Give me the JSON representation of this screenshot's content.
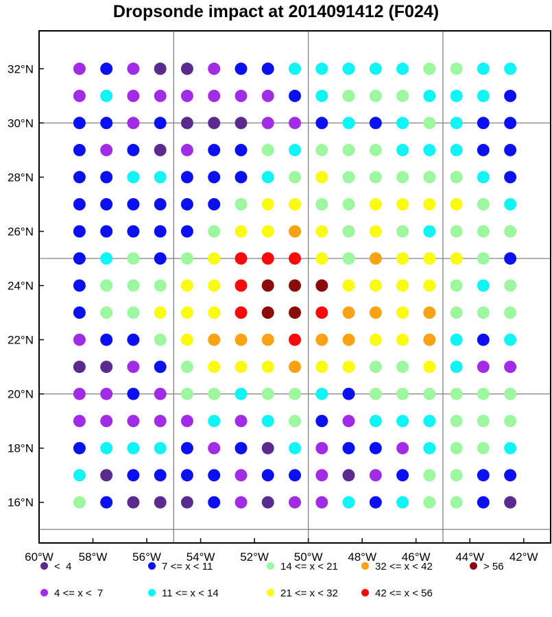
{
  "title": "Dropsonde impact at 2014091412 (F024)",
  "map": {
    "lon_range": [
      -60,
      -41
    ],
    "lat_range": [
      14.5,
      33.4
    ],
    "x_ticks": [
      {
        "lon": -60,
        "label": "60°W"
      },
      {
        "lon": -58,
        "label": "58°W"
      },
      {
        "lon": -56,
        "label": "56°W"
      },
      {
        "lon": -54,
        "label": "54°W"
      },
      {
        "lon": -52,
        "label": "52°W"
      },
      {
        "lon": -50,
        "label": "50°W"
      },
      {
        "lon": -48,
        "label": "48°W"
      },
      {
        "lon": -46,
        "label": "46°W"
      },
      {
        "lon": -44,
        "label": "44°W"
      },
      {
        "lon": -42,
        "label": "42°W"
      }
    ],
    "y_ticks": [
      {
        "lat": 16,
        "label": "16°N"
      },
      {
        "lat": 18,
        "label": "18°N"
      },
      {
        "lat": 20,
        "label": "20°N"
      },
      {
        "lat": 22,
        "label": "22°N"
      },
      {
        "lat": 24,
        "label": "24°N"
      },
      {
        "lat": 26,
        "label": "26°N"
      },
      {
        "lat": 28,
        "label": "28°N"
      },
      {
        "lat": 30,
        "label": "30°N"
      },
      {
        "lat": 32,
        "label": "32°N"
      }
    ],
    "grid_lons": [
      -55,
      -50,
      -45
    ],
    "grid_lats": [
      15,
      20,
      25,
      30
    ],
    "point_lons": [
      -58.5,
      -57.5,
      -56.5,
      -55.5,
      -54.5,
      -53.5,
      -52.5,
      -51.5,
      -50.5,
      -49.5,
      -48.5,
      -47.5,
      -46.5,
      -45.5,
      -44.5,
      -43.5,
      -42.5
    ],
    "point_lats": [
      32,
      31,
      30,
      29,
      28,
      27,
      26,
      25,
      24,
      23,
      22,
      21,
      20,
      19,
      18,
      17,
      16
    ]
  },
  "legend": [
    {
      "label": "<  4",
      "color": "#5b2a8e"
    },
    {
      "label": "7 <= x < 11",
      "color": "#0a10f0"
    },
    {
      "label": "14 <= x < 21",
      "color": "#9cf79e"
    },
    {
      "label": "32 <= x < 42",
      "color": "#f8a214"
    },
    {
      "label": "> 56",
      "color": "#8b0a0a"
    },
    {
      "label": "4 <= x <  7",
      "color": "#a22ce6"
    },
    {
      "label": "11 <= x < 14",
      "color": "#0ff5f5"
    },
    {
      "label": "21 <= x < 32",
      "color": "#fafa12"
    },
    {
      "label": "42 <= x < 56",
      "color": "#fa0a0a"
    }
  ],
  "category_codes": {
    "0": "<  4",
    "1": "4 <= x <  7",
    "2": "7 <= x < 11",
    "3": "11 <= x < 14",
    "4": "14 <= x < 21",
    "5": "21 <= x < 32",
    "6": "32 <= x < 42",
    "7": "42 <= x < 56",
    "8": "> 56"
  },
  "grid_categories": [
    [
      1,
      2,
      1,
      0,
      0,
      1,
      2,
      2,
      3,
      3,
      3,
      3,
      3,
      4,
      4,
      3,
      3
    ],
    [
      1,
      3,
      1,
      1,
      1,
      1,
      1,
      1,
      2,
      3,
      4,
      4,
      4,
      3,
      3,
      3,
      2
    ],
    [
      2,
      2,
      1,
      2,
      0,
      0,
      0,
      1,
      1,
      2,
      3,
      2,
      3,
      4,
      3,
      2,
      2
    ],
    [
      2,
      1,
      2,
      0,
      1,
      2,
      2,
      4,
      3,
      4,
      4,
      4,
      3,
      3,
      3,
      2,
      2
    ],
    [
      2,
      2,
      3,
      3,
      2,
      2,
      2,
      3,
      4,
      5,
      4,
      4,
      4,
      4,
      4,
      3,
      2
    ],
    [
      2,
      2,
      2,
      2,
      2,
      2,
      4,
      5,
      5,
      4,
      4,
      5,
      5,
      5,
      5,
      4,
      3
    ],
    [
      2,
      2,
      2,
      2,
      2,
      4,
      5,
      5,
      6,
      5,
      4,
      5,
      4,
      3,
      4,
      4,
      4
    ],
    [
      2,
      3,
      4,
      2,
      4,
      5,
      7,
      7,
      7,
      5,
      4,
      6,
      5,
      5,
      5,
      4,
      2
    ],
    [
      2,
      4,
      4,
      4,
      5,
      5,
      7,
      8,
      8,
      8,
      5,
      5,
      5,
      5,
      4,
      3,
      4
    ],
    [
      2,
      4,
      4,
      5,
      5,
      5,
      7,
      8,
      8,
      7,
      6,
      6,
      5,
      6,
      4,
      4,
      4
    ],
    [
      1,
      2,
      2,
      4,
      5,
      6,
      6,
      6,
      7,
      6,
      6,
      5,
      5,
      6,
      3,
      2,
      3
    ],
    [
      0,
      0,
      1,
      2,
      4,
      5,
      5,
      5,
      6,
      5,
      5,
      4,
      4,
      5,
      3,
      1,
      1
    ],
    [
      1,
      1,
      2,
      1,
      4,
      4,
      3,
      4,
      4,
      3,
      2,
      4,
      4,
      4,
      4,
      4,
      4
    ],
    [
      1,
      1,
      1,
      1,
      1,
      3,
      1,
      3,
      4,
      2,
      1,
      3,
      3,
      3,
      4,
      4,
      4
    ],
    [
      2,
      3,
      3,
      3,
      2,
      1,
      2,
      0,
      3,
      1,
      2,
      2,
      1,
      3,
      4,
      4,
      3
    ],
    [
      3,
      0,
      2,
      2,
      2,
      2,
      1,
      2,
      2,
      1,
      0,
      1,
      2,
      4,
      4,
      2,
      2
    ],
    [
      4,
      2,
      0,
      0,
      0,
      2,
      1,
      0,
      1,
      1,
      3,
      2,
      3,
      4,
      4,
      2,
      0
    ]
  ]
}
